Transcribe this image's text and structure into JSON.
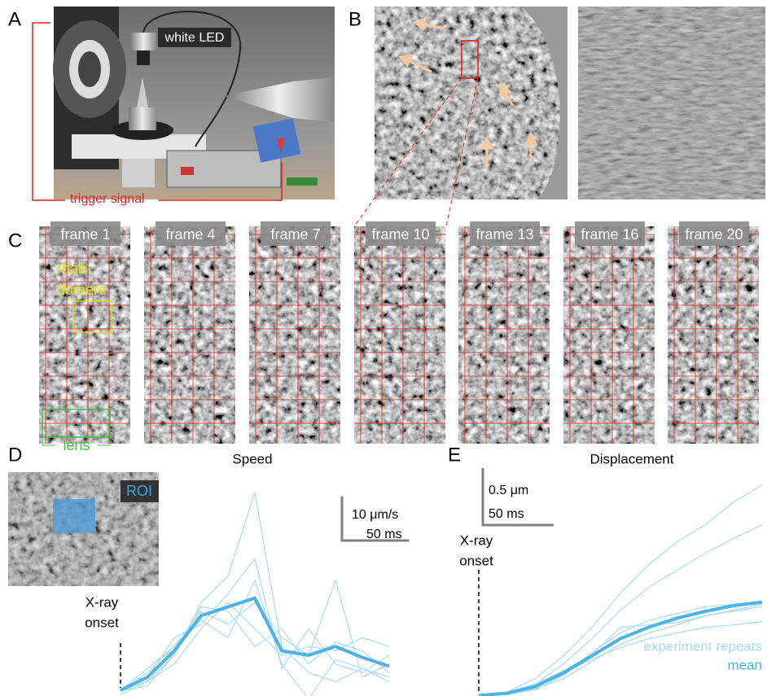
{
  "panels": {
    "A": {
      "label": "A",
      "led": "white LED",
      "trigger": "trigger signal"
    },
    "B": {
      "label": "B"
    },
    "C": {
      "label": "C",
      "frames": [
        "frame 1",
        "frame 4",
        "frame 7",
        "frame 10",
        "frame 13",
        "frame 16",
        "frame 20"
      ],
      "rhabdomere": [
        "rhab-",
        "domere"
      ],
      "lens": "lens"
    },
    "D": {
      "label": "D",
      "roi": "ROI"
    },
    "E": {
      "label": "E"
    }
  },
  "chart_data": [
    {
      "type": "line",
      "title": "Speed",
      "onset": [
        "X-ray",
        "onset"
      ],
      "x": [
        0,
        20,
        40,
        60,
        80,
        100,
        120,
        140,
        160,
        180,
        200
      ],
      "xlim": [
        0,
        200
      ],
      "ylim": [
        -2.2,
        47.8
      ],
      "scalebar": {
        "y": 10,
        "y_label": "10 μm/s",
        "x": 50,
        "x_label": "50 ms"
      },
      "repeats": {
        "color": "#a9dcf2",
        "lines": [
          [
            0,
            2,
            8,
            20,
            26,
            45,
            10,
            4,
            2,
            5,
            3
          ],
          [
            0,
            3,
            12,
            15,
            22,
            30,
            5,
            14,
            6,
            4,
            8
          ],
          [
            0,
            5,
            10,
            18,
            15,
            20,
            12,
            8,
            25,
            3,
            6
          ],
          [
            -1,
            2,
            6,
            14,
            20,
            14,
            8,
            10,
            9,
            12,
            10
          ],
          [
            0,
            4,
            10,
            16,
            12,
            25,
            6,
            -2,
            7,
            5,
            2
          ],
          [
            0,
            1,
            8,
            19,
            18,
            10,
            14,
            6,
            11,
            9,
            4
          ]
        ]
      },
      "mean": {
        "color": "#4db3e6",
        "values": [
          0,
          3,
          9,
          17,
          19,
          21,
          9,
          8,
          10,
          7.5,
          5.5
        ]
      }
    },
    {
      "type": "line",
      "title": "Displacement",
      "onset": [
        "X-ray",
        "onset"
      ],
      "x": [
        0,
        20,
        40,
        60,
        80,
        100,
        120,
        140,
        160,
        180,
        200
      ],
      "xlim": [
        0,
        200
      ],
      "ylim": [
        -0.04,
        1.89
      ],
      "scalebar": {
        "y": 0.5,
        "y_label": "0.5 μm",
        "x": 50,
        "x_label": "50 ms"
      },
      "repeats": {
        "name": "experiment repeats",
        "color": "#a9dcf2",
        "lines": [
          [
            0,
            0.03,
            0.15,
            0.35,
            0.6,
            0.9,
            1.15,
            1.35,
            1.5,
            1.7,
            1.85
          ],
          [
            0,
            0.02,
            0.1,
            0.28,
            0.5,
            0.75,
            0.95,
            1.1,
            1.25,
            1.38,
            1.5
          ],
          [
            0,
            0.02,
            0.06,
            0.15,
            0.3,
            0.45,
            0.55,
            0.62,
            0.7,
            0.74,
            0.78
          ],
          [
            0,
            0.01,
            0.05,
            0.18,
            0.38,
            0.55,
            0.66,
            0.72,
            0.78,
            0.8,
            0.83
          ],
          [
            0,
            0.02,
            0.08,
            0.2,
            0.32,
            0.42,
            0.5,
            0.55,
            0.6,
            0.62,
            0.65
          ],
          [
            0,
            0.03,
            0.1,
            0.22,
            0.36,
            0.6,
            0.62,
            0.64,
            0.7,
            0.75,
            0.8
          ]
        ]
      },
      "mean": {
        "name": "mean",
        "color": "#4db3e6",
        "values": [
          0,
          0.02,
          0.08,
          0.2,
          0.35,
          0.5,
          0.6,
          0.68,
          0.74,
          0.79,
          0.82
        ]
      }
    }
  ]
}
